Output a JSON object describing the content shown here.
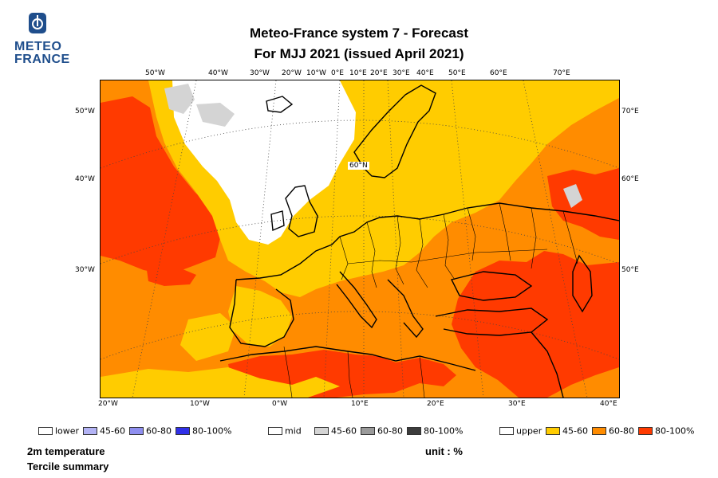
{
  "logo": {
    "line1": "METEO",
    "line2": "FRANCE",
    "name": "meteo-france-logo"
  },
  "title": {
    "line1": "Meteo-France system 7  -  Forecast",
    "line2": "For MJJ 2021      (issued April 2021)"
  },
  "top_axis_labels": [
    "50°W",
    "40°W",
    "30°W",
    "20°W",
    "10°W",
    "0°E",
    "10°E",
    "20°E",
    "30°E",
    "40°E",
    "50°E",
    "60°E",
    "70°E"
  ],
  "bottom_axis_labels": [
    "20°W",
    "10°W",
    "0°W",
    "10°E",
    "20°E",
    "30°E",
    "40°E"
  ],
  "left_axis_labels": [
    "50°W",
    "40°W",
    "30°W"
  ],
  "right_axis_labels": [
    "70°E",
    "60°E",
    "50°E"
  ],
  "map_inner_label": "60°N",
  "legend": {
    "groups": [
      {
        "name": "lower",
        "items": [
          {
            "label": "lower",
            "color": "#ffffff"
          },
          {
            "label": "45-60",
            "color": "#b3b3f5"
          },
          {
            "label": "60-80",
            "color": "#8f8ff0"
          },
          {
            "label": "80-100%",
            "color": "#3030e8"
          }
        ]
      },
      {
        "name": "mid",
        "items": [
          {
            "label": "mid",
            "color": "#ffffff"
          },
          {
            "label": "45-60",
            "color": "#d4d4d4"
          },
          {
            "label": "60-80",
            "color": "#9a9a9a"
          },
          {
            "label": "80-100%",
            "color": "#3c3c3c"
          }
        ]
      },
      {
        "name": "upper",
        "items": [
          {
            "label": "upper",
            "color": "#ffffff"
          },
          {
            "label": "45-60",
            "color": "#ffcc00"
          },
          {
            "label": "60-80",
            "color": "#ff8c00"
          },
          {
            "label": "80-100%",
            "color": "#ff3a00"
          }
        ]
      }
    ]
  },
  "footer": {
    "variable": "2m temperature",
    "summary": "Tercile summary",
    "unit": "unit : %"
  },
  "colors": {
    "upper_45_60": "#ffcc00",
    "upper_60_80": "#ff8c00",
    "upper_80_100": "#ff3a00",
    "mid_45_60": "#d4d4d4",
    "background": "#ffffff",
    "logo_blue": "#1f4e8c"
  }
}
